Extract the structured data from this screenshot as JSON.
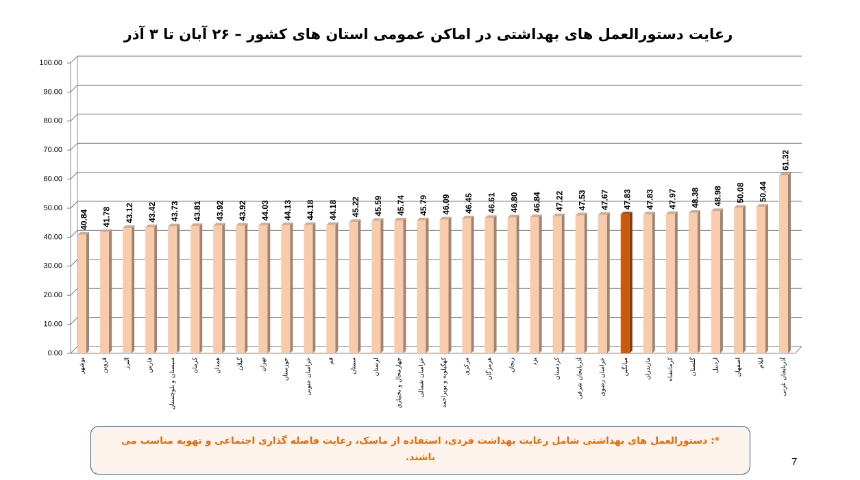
{
  "chart_data": {
    "type": "bar",
    "title": "رعایت دستورالعمل های بهداشتی در اماکن عمومی استان های کشور  – ۲۶ آبان تا ۳ آذر",
    "categories": [
      "بوشهر",
      "قزوین",
      "البرز",
      "فارس",
      "سیستان و بلوچستان",
      "کرمان",
      "همدان",
      "گیلان",
      "تهران",
      "خوزستان",
      "خراسان جنوبی",
      "قم",
      "سمنان",
      "لرستان",
      "چهارمحال و بختیاری",
      "خراسان شمالی",
      "کهگیلویه و بویراحمد",
      "مرکزی",
      "هرمزگان",
      "زنجان",
      "یزد",
      "کردستان",
      "آذربایجان شرقی",
      "خراسان رضوی",
      "میانگین",
      "مازندران",
      "کرمانشاه",
      "گلستان",
      "اردبیل",
      "اصفهان",
      "ایلام",
      "آذربایجان غربی"
    ],
    "values": [
      40.84,
      41.78,
      43.12,
      43.42,
      43.73,
      43.81,
      43.92,
      43.92,
      44.03,
      44.13,
      44.18,
      44.18,
      45.22,
      45.59,
      45.74,
      45.79,
      46.09,
      46.45,
      46.61,
      46.8,
      46.84,
      47.22,
      47.53,
      47.67,
      47.83,
      47.83,
      47.97,
      48.38,
      48.98,
      50.08,
      50.44,
      61.32
    ],
    "value_labels": [
      "40.84",
      "41.78",
      "43.12",
      "43.42",
      "43.73",
      "43.81",
      "43.92",
      "43.92",
      "44.03",
      "44.13",
      "44.18",
      "44.18",
      "45.22",
      "45.59",
      "45.74",
      "45.79",
      "46.09",
      "46.45",
      "46.61",
      "46.80",
      "46.84",
      "47.22",
      "47.53",
      "47.67",
      "47.83",
      "47.83",
      "47.97",
      "48.38",
      "48.98",
      "50.08",
      "50.44",
      "61.32"
    ],
    "colors": [
      "#f8cbad",
      "#f8cbad",
      "#f8cbad",
      "#f8cbad",
      "#f8cbad",
      "#f8cbad",
      "#f8cbad",
      "#f8cbad",
      "#f8cbad",
      "#f8cbad",
      "#f8cbad",
      "#f8cbad",
      "#f8cbad",
      "#f8cbad",
      "#f8cbad",
      "#f8cbad",
      "#f8cbad",
      "#f8cbad",
      "#f8cbad",
      "#f8cbad",
      "#f8cbad",
      "#f8cbad",
      "#f8cbad",
      "#f8cbad",
      "#c55a11",
      "#f8cbad",
      "#f8cbad",
      "#f8cbad",
      "#f8cbad",
      "#f8cbad",
      "#f8cbad",
      "#f8cbad"
    ],
    "ylim": [
      0,
      100
    ],
    "yticks": [
      {
        "value": 0,
        "label": "0.00"
      },
      {
        "value": 10,
        "label": "10.00"
      },
      {
        "value": 20,
        "label": "20.00"
      },
      {
        "value": 30,
        "label": "30.00"
      },
      {
        "value": 40,
        "label": "40.00"
      },
      {
        "value": 50,
        "label": "50.00"
      },
      {
        "value": 60,
        "label": "60.00"
      },
      {
        "value": 70,
        "label": "70.00"
      },
      {
        "value": 80,
        "label": "80.00"
      },
      {
        "value": 90,
        "label": "90.00"
      },
      {
        "value": 100,
        "label": "100.00"
      }
    ],
    "grid": true
  },
  "footnote": "*: دستورالعمل های بهداشتی شامل رعایت بهداشت فردی، استفاده از ماسک، رعایت فاصله گذاری اجتماعی و تهویه مناسب می باشند.",
  "page_number": "7"
}
